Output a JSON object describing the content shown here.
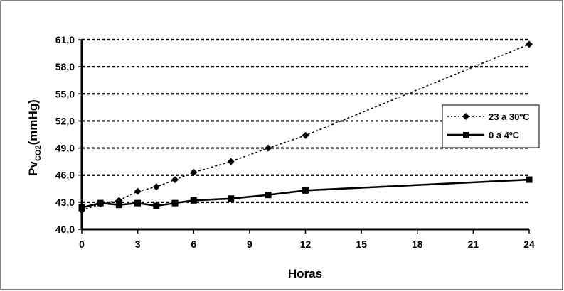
{
  "chart_data": {
    "type": "line",
    "xlabel": "Horas",
    "ylabel_main": "Pv",
    "ylabel_sub": "CO2",
    "ylabel_unit": "(mmHg)",
    "xlim": [
      0,
      24
    ],
    "ylim": [
      40.0,
      61.0
    ],
    "x_ticks": [
      0,
      3,
      6,
      9,
      12,
      15,
      18,
      21,
      24
    ],
    "x_tick_labels": [
      "0",
      "3",
      "6",
      "9",
      "12",
      "15",
      "18",
      "21",
      "24"
    ],
    "y_ticks": [
      40.0,
      43.0,
      46.0,
      49.0,
      52.0,
      55.0,
      58.0,
      61.0
    ],
    "y_tick_labels": [
      "40,0",
      "43,0",
      "46,0",
      "49,0",
      "52,0",
      "55,0",
      "58,0",
      "61,0"
    ],
    "grid": "horizontal dashed",
    "legend_position": "right",
    "series": [
      {
        "name": "23 a 30ºC",
        "marker": "diamond",
        "line": "dashed",
        "color": "#000000",
        "x": [
          0,
          1,
          2,
          3,
          4,
          5,
          6,
          8,
          10,
          12,
          24
        ],
        "y": [
          42.1,
          42.8,
          43.2,
          44.2,
          44.7,
          45.5,
          46.3,
          47.5,
          49.0,
          50.4,
          60.5
        ]
      },
      {
        "name": "0 a 4ºC",
        "marker": "square",
        "line": "solid",
        "color": "#000000",
        "x": [
          0,
          1,
          2,
          3,
          4,
          5,
          6,
          8,
          10,
          12,
          24
        ],
        "y": [
          42.4,
          42.9,
          42.7,
          42.9,
          42.6,
          42.9,
          43.2,
          43.4,
          43.8,
          44.3,
          45.5
        ]
      }
    ]
  }
}
